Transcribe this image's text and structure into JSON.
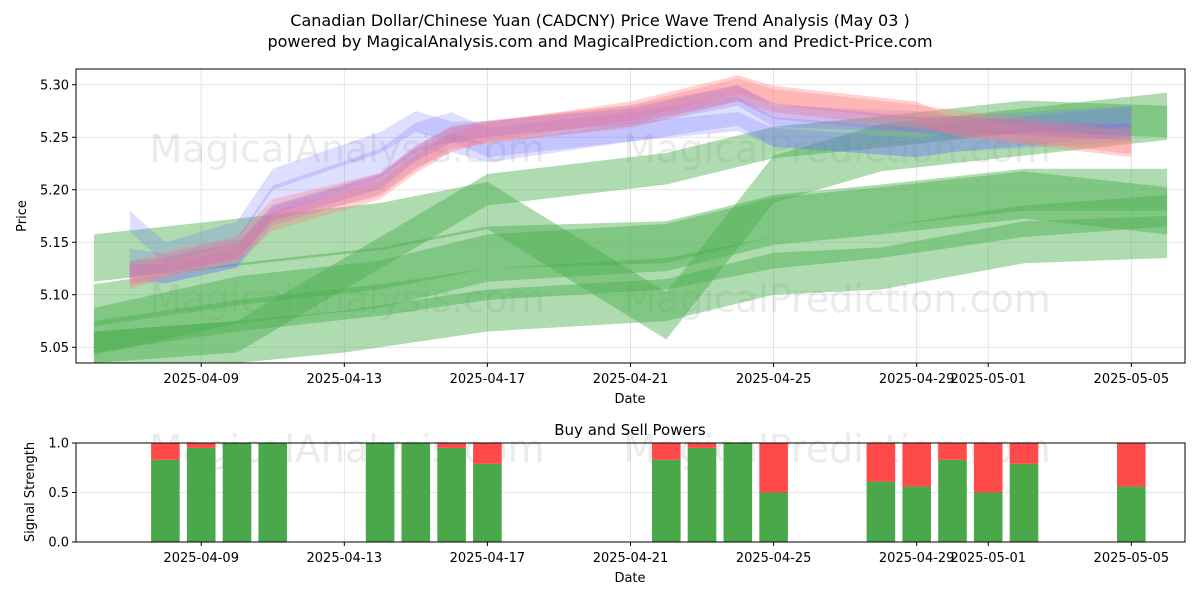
{
  "title_line1": "Canadian Dollar/Chinese Yuan (CADCNY) Price Wave Trend Analysis (May 03 )",
  "title_line2": "powered by MagicalAnalysis.com and MagicalPrediction.com and Predict-Price.com",
  "watermarks": [
    "MagicalAnalysis.com",
    "MagicalPrediction.com"
  ],
  "colors": {
    "buy": "#4aa84a",
    "sell": "#ff4a4a",
    "green_band": "#4caf50",
    "blue_band": "#6a6aff",
    "red_band": "#ff8080",
    "purple_band": "#b46ac8"
  },
  "chart_data": [
    {
      "type": "area",
      "xlabel": "Date",
      "ylabel": "Price",
      "x_ticks": [
        "2025-04-09",
        "2025-04-13",
        "2025-04-17",
        "2025-04-21",
        "2025-04-25",
        "2025-04-29",
        "2025-05-01",
        "2025-05-05"
      ],
      "y_ticks": [
        "5.05",
        "5.10",
        "5.15",
        "5.20",
        "5.25",
        "5.30"
      ],
      "xlim": [
        "2025-04-05T12:00",
        "2025-05-06T12:00"
      ],
      "ylim": [
        5.035,
        5.315
      ],
      "grid": true,
      "series": [
        {
          "group": "green",
          "x": [
            "2025-04-06",
            "2025-04-10",
            "2025-04-14",
            "2025-04-17",
            "2025-04-22",
            "2025-04-25",
            "2025-04-28",
            "2025-05-02",
            "2025-05-06"
          ],
          "values": [
            5.135,
            5.15,
            5.165,
            5.185,
            5.08,
            5.21,
            5.24,
            5.255,
            5.27
          ],
          "width": 0.045
        },
        {
          "group": "green",
          "x": [
            "2025-04-06",
            "2025-04-10",
            "2025-04-14",
            "2025-04-17",
            "2025-04-22",
            "2025-04-25",
            "2025-04-28",
            "2025-05-02",
            "2025-05-06"
          ],
          "values": [
            5.09,
            5.11,
            5.125,
            5.145,
            5.15,
            5.175,
            5.185,
            5.2,
            5.2
          ],
          "width": 0.04
        },
        {
          "group": "green",
          "x": [
            "2025-04-06",
            "2025-04-10",
            "2025-04-14",
            "2025-04-17",
            "2025-04-22",
            "2025-04-25",
            "2025-04-28",
            "2025-05-02",
            "2025-05-06"
          ],
          "values": [
            5.065,
            5.095,
            5.11,
            5.135,
            5.145,
            5.17,
            5.18,
            5.195,
            5.18
          ],
          "width": 0.045
        },
        {
          "group": "green",
          "x": [
            "2025-04-06",
            "2025-04-10",
            "2025-04-14",
            "2025-04-17",
            "2025-04-22",
            "2025-04-25",
            "2025-04-28",
            "2025-05-02",
            "2025-05-06"
          ],
          "values": [
            5.06,
            5.08,
            5.095,
            5.11,
            5.12,
            5.14,
            5.15,
            5.17,
            5.18
          ],
          "width": 0.03
        },
        {
          "group": "green",
          "x": [
            "2025-04-06",
            "2025-04-10",
            "2025-04-13",
            "2025-04-17",
            "2025-04-22",
            "2025-04-25",
            "2025-04-28",
            "2025-05-02",
            "2025-05-06"
          ],
          "values": [
            5.045,
            5.055,
            5.065,
            5.085,
            5.095,
            5.12,
            5.125,
            5.15,
            5.155
          ],
          "width": 0.04
        },
        {
          "group": "green",
          "x": [
            "2025-04-06",
            "2025-04-10",
            "2025-04-14",
            "2025-04-17",
            "2025-04-22",
            "2025-04-25",
            "2025-04-28",
            "2025-05-02",
            "2025-05-06"
          ],
          "values": [
            5.05,
            5.06,
            5.14,
            5.2,
            5.22,
            5.245,
            5.255,
            5.27,
            5.265
          ],
          "width": 0.03
        },
        {
          "group": "blue",
          "x": [
            "2025-04-07",
            "2025-04-08",
            "2025-04-10",
            "2025-04-11",
            "2025-04-14",
            "2025-04-15",
            "2025-04-16",
            "2025-04-17",
            "2025-04-21",
            "2025-04-24",
            "2025-04-25",
            "2025-04-29",
            "2025-04-30",
            "2025-05-05"
          ],
          "values": [
            5.13,
            5.125,
            5.14,
            5.19,
            5.225,
            5.25,
            5.26,
            5.245,
            5.26,
            5.275,
            5.255,
            5.245,
            5.25,
            5.265
          ],
          "width": 0.028
        },
        {
          "group": "blue",
          "x": [
            "2025-04-07",
            "2025-04-08",
            "2025-04-10",
            "2025-04-11",
            "2025-04-14",
            "2025-04-15",
            "2025-04-16",
            "2025-04-17",
            "2025-04-21",
            "2025-04-24",
            "2025-04-25",
            "2025-04-29",
            "2025-04-30",
            "2025-05-05"
          ],
          "values": [
            5.17,
            5.14,
            5.16,
            5.21,
            5.245,
            5.265,
            5.255,
            5.255,
            5.27,
            5.29,
            5.27,
            5.265,
            5.26,
            5.27
          ],
          "width": 0.02
        },
        {
          "group": "blue",
          "x": [
            "2025-04-07",
            "2025-04-08",
            "2025-04-10",
            "2025-04-11",
            "2025-04-14",
            "2025-04-15",
            "2025-04-16",
            "2025-04-17",
            "2025-04-21",
            "2025-04-24",
            "2025-04-25",
            "2025-04-29",
            "2025-04-30",
            "2025-05-05"
          ],
          "values": [
            5.12,
            5.12,
            5.135,
            5.175,
            5.205,
            5.23,
            5.245,
            5.235,
            5.255,
            5.265,
            5.25,
            5.24,
            5.245,
            5.255
          ],
          "width": 0.018
        },
        {
          "group": "red",
          "x": [
            "2025-04-07",
            "2025-04-08",
            "2025-04-10",
            "2025-04-11",
            "2025-04-14",
            "2025-04-15",
            "2025-04-16",
            "2025-04-17",
            "2025-04-21",
            "2025-04-24",
            "2025-04-25",
            "2025-04-29",
            "2025-04-30",
            "2025-05-05"
          ],
          "values": [
            5.12,
            5.13,
            5.145,
            5.18,
            5.205,
            5.23,
            5.25,
            5.255,
            5.27,
            5.295,
            5.285,
            5.27,
            5.265,
            5.245
          ],
          "width": 0.022
        },
        {
          "group": "red",
          "x": [
            "2025-04-07",
            "2025-04-08",
            "2025-04-10",
            "2025-04-11",
            "2025-04-14",
            "2025-04-15",
            "2025-04-16",
            "2025-04-17",
            "2025-04-21",
            "2025-04-24",
            "2025-04-25",
            "2025-04-29",
            "2025-04-30",
            "2025-05-05"
          ],
          "values": [
            5.115,
            5.125,
            5.14,
            5.17,
            5.2,
            5.225,
            5.245,
            5.255,
            5.275,
            5.3,
            5.29,
            5.275,
            5.26,
            5.24
          ],
          "width": 0.018
        },
        {
          "group": "purple",
          "x": [
            "2025-04-07",
            "2025-04-08",
            "2025-04-10",
            "2025-04-11",
            "2025-04-14",
            "2025-04-15",
            "2025-04-16",
            "2025-04-17",
            "2025-04-21",
            "2025-04-24",
            "2025-04-25",
            "2025-04-29",
            "2025-04-30",
            "2025-05-05"
          ],
          "values": [
            5.125,
            5.128,
            5.142,
            5.178,
            5.208,
            5.235,
            5.252,
            5.258,
            5.27,
            5.292,
            5.275,
            5.262,
            5.262,
            5.255
          ],
          "width": 0.015
        }
      ]
    },
    {
      "type": "bar",
      "title": "Buy and Sell Powers",
      "xlabel": "Date",
      "ylabel": "Signal Strength",
      "x_ticks": [
        "2025-04-09",
        "2025-04-13",
        "2025-04-17",
        "2025-04-21",
        "2025-04-25",
        "2025-04-29",
        "2025-05-01",
        "2025-05-05"
      ],
      "y_ticks": [
        "0.0",
        "0.5",
        "1.0"
      ],
      "xlim": [
        "2025-04-05T12:00",
        "2025-05-06T12:00"
      ],
      "ylim": [
        0,
        1
      ],
      "grid": true,
      "series": [
        {
          "name": "buy",
          "x": [
            "2025-04-08",
            "2025-04-09",
            "2025-04-10",
            "2025-04-11",
            "2025-04-14",
            "2025-04-15",
            "2025-04-16",
            "2025-04-17",
            "2025-04-22",
            "2025-04-23",
            "2025-04-24",
            "2025-04-25",
            "2025-04-28",
            "2025-04-29",
            "2025-04-30",
            "2025-05-01",
            "2025-05-02",
            "2025-05-05"
          ],
          "values": [
            0.83,
            0.95,
            1.0,
            1.0,
            1.0,
            1.0,
            0.95,
            0.79,
            0.83,
            0.95,
            1.0,
            0.5,
            0.61,
            0.56,
            0.83,
            0.5,
            0.79,
            0.56
          ]
        },
        {
          "name": "sell",
          "x": [
            "2025-04-08",
            "2025-04-09",
            "2025-04-10",
            "2025-04-11",
            "2025-04-14",
            "2025-04-15",
            "2025-04-16",
            "2025-04-17",
            "2025-04-22",
            "2025-04-23",
            "2025-04-24",
            "2025-04-25",
            "2025-04-28",
            "2025-04-29",
            "2025-04-30",
            "2025-05-01",
            "2025-05-02",
            "2025-05-05"
          ],
          "values": [
            0.17,
            0.05,
            0.0,
            0.0,
            0.0,
            0.0,
            0.05,
            0.21,
            0.17,
            0.05,
            0.0,
            0.5,
            0.39,
            0.44,
            0.17,
            0.5,
            0.21,
            0.44
          ]
        }
      ]
    }
  ]
}
